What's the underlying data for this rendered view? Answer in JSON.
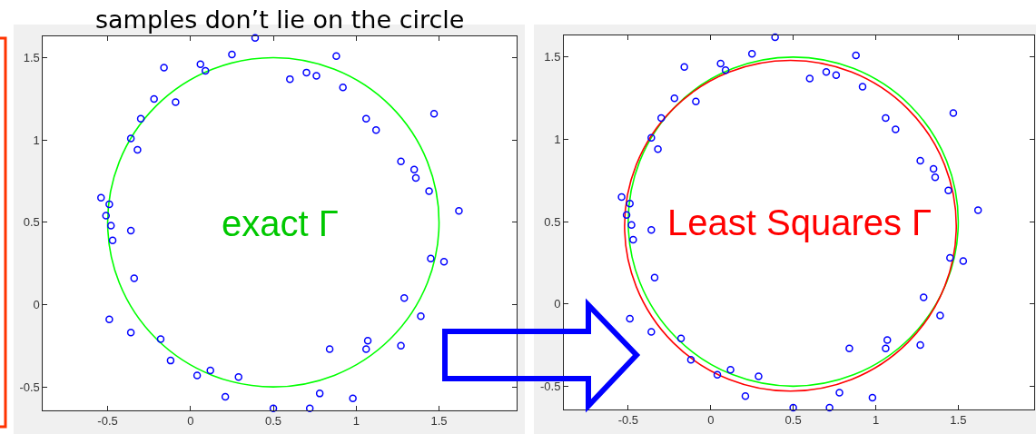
{
  "chart_data": [
    {
      "type": "scatter",
      "title": "samples don’t lie on the circle",
      "annotations": [
        "exact Γ"
      ],
      "xlim": [
        -0.89,
        1.97
      ],
      "ylim": [
        -0.64,
        1.63
      ],
      "xticks": [
        -0.5,
        0,
        0.5,
        1,
        1.5
      ],
      "yticks": [
        -0.5,
        0,
        0.5,
        1,
        1.5
      ],
      "marker": "circle",
      "series": [
        {
          "color": "#0000ff",
          "x": [
            0.39,
            -0.16,
            0.06,
            0.09,
            0.25,
            0.88,
            0.6,
            0.7,
            0.76,
            0.92,
            -0.22,
            -0.09,
            -0.3,
            -0.36,
            -0.32,
            1.06,
            1.12,
            1.47,
            1.27,
            1.35,
            1.36,
            1.44,
            1.62,
            -0.54,
            -0.49,
            -0.51,
            -0.48,
            -0.36,
            -0.47,
            -0.34,
            1.45,
            1.53,
            1.29,
            1.39,
            -0.49,
            -0.36,
            -0.18,
            -0.12,
            0.04,
            0.12,
            0.29,
            0.21,
            0.5,
            0.72,
            0.78,
            0.98,
            0.84,
            1.06,
            1.07,
            1.27
          ],
          "values": [
            1.62,
            1.44,
            1.46,
            1.42,
            1.52,
            1.51,
            1.37,
            1.41,
            1.39,
            1.32,
            1.25,
            1.23,
            1.13,
            1.01,
            0.94,
            1.13,
            1.06,
            1.16,
            0.87,
            0.82,
            0.77,
            0.69,
            0.57,
            0.65,
            0.61,
            0.54,
            0.48,
            0.45,
            0.39,
            0.16,
            0.28,
            0.26,
            0.04,
            -0.07,
            -0.09,
            -0.17,
            -0.21,
            -0.34,
            -0.43,
            -0.4,
            -0.44,
            -0.56,
            -0.63,
            -0.63,
            -0.54,
            -0.57,
            -0.27,
            -0.27,
            -0.22,
            -0.25
          ]
        }
      ]
    },
    {
      "type": "scatter",
      "annotations": [
        "Least Squares Γ"
      ],
      "xlim": [
        -0.89,
        1.96
      ],
      "ylim": [
        -0.64,
        1.63
      ],
      "xticks": [
        -0.5,
        0,
        0.5,
        1,
        1.5
      ],
      "yticks": [
        -0.5,
        0,
        0.5,
        1,
        1.5
      ],
      "marker": "circle",
      "series": [
        {
          "color": "#0000ff",
          "x": [
            0.39,
            -0.16,
            0.06,
            0.09,
            0.25,
            0.88,
            0.6,
            0.7,
            0.76,
            0.92,
            -0.22,
            -0.09,
            -0.3,
            -0.36,
            -0.32,
            1.06,
            1.12,
            1.47,
            1.27,
            1.35,
            1.36,
            1.44,
            1.62,
            -0.54,
            -0.49,
            -0.51,
            -0.48,
            -0.36,
            -0.47,
            -0.34,
            1.45,
            1.53,
            1.29,
            1.39,
            -0.49,
            -0.36,
            -0.18,
            -0.12,
            0.04,
            0.12,
            0.29,
            0.21,
            0.5,
            0.72,
            0.78,
            0.98,
            0.84,
            1.06,
            1.07,
            1.27
          ],
          "values": [
            1.62,
            1.44,
            1.46,
            1.42,
            1.52,
            1.51,
            1.37,
            1.41,
            1.39,
            1.32,
            1.25,
            1.23,
            1.13,
            1.01,
            0.94,
            1.13,
            1.06,
            1.16,
            0.87,
            0.82,
            0.77,
            0.69,
            0.57,
            0.65,
            0.61,
            0.54,
            0.48,
            0.45,
            0.39,
            0.16,
            0.28,
            0.26,
            0.04,
            -0.07,
            -0.09,
            -0.17,
            -0.21,
            -0.34,
            -0.43,
            -0.4,
            -0.44,
            -0.56,
            -0.63,
            -0.63,
            -0.54,
            -0.57,
            -0.27,
            -0.27,
            -0.22,
            -0.25
          ]
        }
      ]
    }
  ]
}
